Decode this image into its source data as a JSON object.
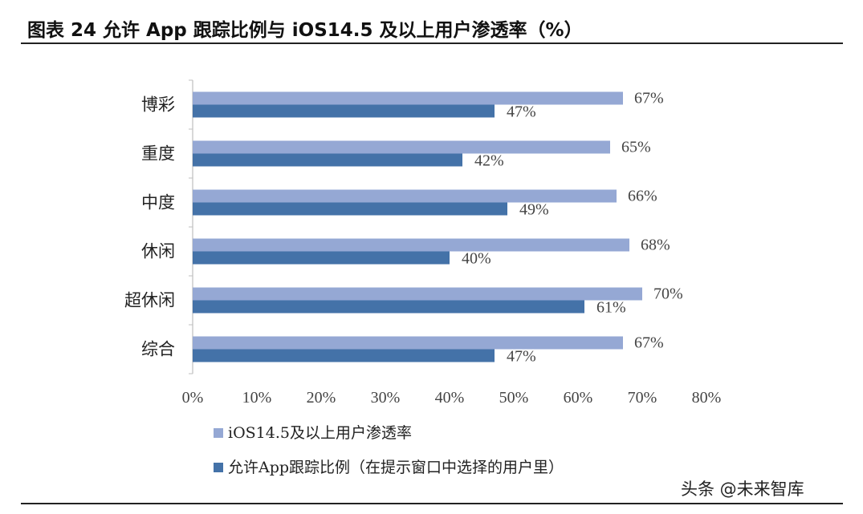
{
  "header": {
    "title": "图表 24 允许 App 跟踪比例与 iOS14.5 及以上用户渗透率（%）"
  },
  "watermark": "头条 @未来智库",
  "colors": {
    "ios_series": "#95a8d4",
    "allow_series": "#4472a8",
    "highlight_label": "#c0282e",
    "normal_label": "#444444"
  },
  "chart_data": {
    "type": "bar",
    "orientation": "horizontal",
    "categories": [
      "博彩",
      "重度",
      "中度",
      "休闲",
      "超休闲",
      "综合"
    ],
    "series": [
      {
        "name": "iOS14.5及以上用户渗透率",
        "values": [
          67,
          65,
          66,
          68,
          70,
          67
        ],
        "labels": [
          "67%",
          "65%",
          "66%",
          "68%",
          "70%",
          "67%"
        ]
      },
      {
        "name": "允许App跟踪比例（在提示窗口中选择的用户里）",
        "values": [
          47,
          42,
          49,
          40,
          61,
          47
        ],
        "labels": [
          "47%",
          "42%",
          "49%",
          "40%",
          "61%",
          "47%"
        ],
        "highlighted": [
          false,
          true,
          false,
          true,
          false,
          false
        ]
      }
    ],
    "xlim": [
      0,
      80
    ],
    "xticks": [
      0,
      10,
      20,
      30,
      40,
      50,
      60,
      70,
      80
    ],
    "xtick_labels": [
      "0%",
      "10%",
      "20%",
      "30%",
      "40%",
      "50%",
      "60%",
      "70%",
      "80%"
    ],
    "legend": [
      "iOS14.5及以上用户渗透率",
      "允许App跟踪比例（在提示窗口中选择的用户里）"
    ],
    "legend_position": "bottom-left",
    "grid": false,
    "title": "",
    "xlabel": "",
    "ylabel": ""
  }
}
